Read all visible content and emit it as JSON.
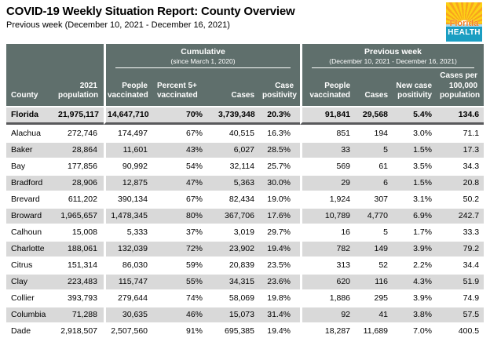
{
  "page": {
    "title": "COVID-19 Weekly Situation Report: County Overview",
    "subtitle": "Previous week (December 10, 2021 - December 16, 2021)"
  },
  "logo": {
    "name": "Florida Health",
    "line1": "Florida",
    "line2": "HEALTH"
  },
  "table": {
    "groups": [
      {
        "label": "Cumulative",
        "sublabel": "(since March 1, 2020)"
      },
      {
        "label": "Previous week",
        "sublabel": "(December 10, 2021 - December 16, 2021)"
      }
    ],
    "columns": [
      "County",
      "2021 population",
      "People vaccinated",
      "Percent 5+ vaccinated",
      "Cases",
      "Case positivity",
      "People vaccinated",
      "Cases",
      "New case positivity",
      "Cases per 100,000 population"
    ],
    "total_row": [
      "Florida",
      "21,975,117",
      "14,647,710",
      "70%",
      "3,739,348",
      "20.3%",
      "91,841",
      "29,568",
      "5.4%",
      "134.6"
    ],
    "rows": [
      [
        "Alachua",
        "272,746",
        "174,497",
        "67%",
        "40,515",
        "16.3%",
        "851",
        "194",
        "3.0%",
        "71.1"
      ],
      [
        "Baker",
        "28,864",
        "11,601",
        "43%",
        "6,027",
        "28.5%",
        "33",
        "5",
        "1.5%",
        "17.3"
      ],
      [
        "Bay",
        "177,856",
        "90,992",
        "54%",
        "32,114",
        "25.7%",
        "569",
        "61",
        "3.5%",
        "34.3"
      ],
      [
        "Bradford",
        "28,906",
        "12,875",
        "47%",
        "5,363",
        "30.0%",
        "29",
        "6",
        "1.5%",
        "20.8"
      ],
      [
        "Brevard",
        "611,202",
        "390,134",
        "67%",
        "82,434",
        "19.0%",
        "1,924",
        "307",
        "3.1%",
        "50.2"
      ],
      [
        "Broward",
        "1,965,657",
        "1,478,345",
        "80%",
        "367,706",
        "17.6%",
        "10,789",
        "4,770",
        "6.9%",
        "242.7"
      ],
      [
        "Calhoun",
        "15,008",
        "5,333",
        "37%",
        "3,019",
        "29.7%",
        "16",
        "5",
        "1.7%",
        "33.3"
      ],
      [
        "Charlotte",
        "188,061",
        "132,039",
        "72%",
        "23,902",
        "19.4%",
        "782",
        "149",
        "3.9%",
        "79.2"
      ],
      [
        "Citrus",
        "151,314",
        "86,030",
        "59%",
        "20,839",
        "23.5%",
        "313",
        "52",
        "2.2%",
        "34.4"
      ],
      [
        "Clay",
        "223,483",
        "115,747",
        "55%",
        "34,315",
        "23.6%",
        "620",
        "116",
        "4.3%",
        "51.9"
      ],
      [
        "Collier",
        "393,793",
        "279,644",
        "74%",
        "58,069",
        "19.8%",
        "1,886",
        "295",
        "3.9%",
        "74.9"
      ],
      [
        "Columbia",
        "71,288",
        "30,635",
        "46%",
        "15,073",
        "31.4%",
        "92",
        "41",
        "3.8%",
        "57.5"
      ],
      [
        "Dade",
        "2,918,507",
        "2,507,560",
        "91%",
        "695,385",
        "19.4%",
        "18,287",
        "11,689",
        "7.0%",
        "400.5"
      ]
    ]
  },
  "colors": {
    "header_bg": "#5f6f6c",
    "row_alt": "#d9d9d9",
    "total_row_border": "#58595b",
    "logo_yellow": "#fcd116",
    "logo_orange_ray": "#f9a51c",
    "logo_florida_text": "#f58025",
    "logo_teal": "#1b9ec2"
  }
}
